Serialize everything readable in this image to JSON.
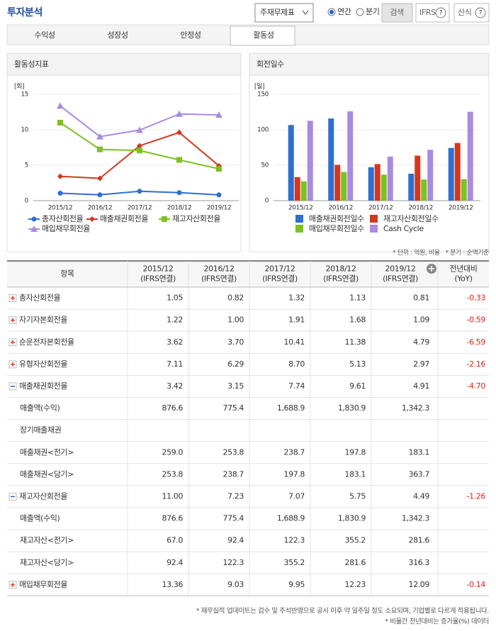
{
  "header": {
    "title": "투자분석",
    "select": "주재무제표",
    "radios": [
      "연간",
      "분기"
    ],
    "radio_checked": 0,
    "buttons": [
      "검색",
      "IFRS",
      "산식"
    ]
  },
  "tabs": [
    "수익성",
    "성장성",
    "안정성",
    "활동성"
  ],
  "active_tab": 3,
  "chart_data": [
    {
      "type": "line",
      "title": "활동성지표",
      "unit": "[회]",
      "categories": [
        "2015/12",
        "2016/12",
        "2017/12",
        "2018/12",
        "2019/12"
      ],
      "ylim": [
        0,
        15
      ],
      "yticks": [
        0,
        5,
        10,
        15
      ],
      "grid": true,
      "series": [
        {
          "name": "총자산회전율",
          "color": "#2f6fd0",
          "marker": "circle",
          "values": [
            1.05,
            0.82,
            1.32,
            1.13,
            0.81
          ]
        },
        {
          "name": "매출채권회전율",
          "color": "#d2381e",
          "marker": "diamond",
          "values": [
            3.42,
            3.15,
            7.74,
            9.61,
            4.91
          ]
        },
        {
          "name": "재고자산회전율",
          "color": "#7dc21e",
          "marker": "square",
          "values": [
            11.0,
            7.23,
            7.07,
            5.75,
            4.49
          ]
        },
        {
          "name": "매입채무회전율",
          "color": "#a98be0",
          "marker": "triangle",
          "values": [
            13.36,
            9.03,
            9.95,
            12.23,
            12.09
          ]
        }
      ]
    },
    {
      "type": "bar",
      "title": "회전일수",
      "unit": "[일]",
      "categories": [
        "2015/12",
        "2016/12",
        "2017/12",
        "2018/12",
        "2019/12"
      ],
      "ylim": [
        0,
        150
      ],
      "yticks": [
        0,
        50,
        100,
        150
      ],
      "grid": true,
      "series": [
        {
          "name": "매출채권회전일수",
          "color": "#2f6fd0",
          "values": [
            106.7,
            115.9,
            47.2,
            38.0,
            74.3
          ]
        },
        {
          "name": "재고자산회전일수",
          "color": "#d2381e",
          "values": [
            33.2,
            50.5,
            51.6,
            63.5,
            81.3
          ]
        },
        {
          "name": "매입채무회전일수",
          "color": "#7dc21e",
          "values": [
            27.3,
            40.4,
            36.7,
            29.8,
            30.2
          ]
        },
        {
          "name": "Cash Cycle",
          "color": "#a98be0",
          "values": [
            112.6,
            126.0,
            62.1,
            71.7,
            125.4
          ]
        }
      ]
    }
  ],
  "notes": [
    "* 단위 : 억원, 비율",
    "* 분기 : 순액기준"
  ],
  "table": {
    "columns": [
      [
        "항목"
      ],
      [
        "2015/12",
        "(IFRS연결)"
      ],
      [
        "2016/12",
        "(IFRS연결)"
      ],
      [
        "2017/12",
        "(IFRS연결)"
      ],
      [
        "2018/12",
        "(IFRS연결)"
      ],
      [
        "2019/12",
        "(IFRS연결)"
      ],
      [
        "전년대비",
        "(YoY)"
      ]
    ],
    "rows": [
      {
        "label": "총자산회전율",
        "toggle": "plus",
        "values": [
          "1.05",
          "0.82",
          "1.32",
          "1.13",
          "0.81"
        ],
        "yoy": "-0.33"
      },
      {
        "label": "자기자본회전율",
        "toggle": "plus",
        "values": [
          "1.22",
          "1.00",
          "1.91",
          "1.68",
          "1.09"
        ],
        "yoy": "-0.59"
      },
      {
        "label": "순운전자본회전율",
        "toggle": "plus",
        "values": [
          "3.62",
          "3.70",
          "10.41",
          "11.38",
          "4.79"
        ],
        "yoy": "-6.59"
      },
      {
        "label": "유형자산회전율",
        "toggle": "plus",
        "values": [
          "7.11",
          "6.29",
          "8.70",
          "5.13",
          "2.97"
        ],
        "yoy": "-2.16"
      },
      {
        "label": "매출채권회전율",
        "toggle": "minus",
        "values": [
          "3.42",
          "3.15",
          "7.74",
          "9.61",
          "4.91"
        ],
        "yoy": "-4.70"
      },
      {
        "label": "매출액(수익)",
        "values": [
          "876.6",
          "775.4",
          "1,688.9",
          "1,830.9",
          "1,342.3"
        ]
      },
      {
        "label": "장기매출채권",
        "values": [
          null,
          null,
          null,
          null,
          null
        ]
      },
      {
        "label": "매출채권<전기>",
        "values": [
          "259.0",
          "253.8",
          "238.7",
          "197.8",
          "183.1"
        ]
      },
      {
        "label": "매출채권<당기>",
        "values": [
          "253.8",
          "238.7",
          "197.8",
          "183.1",
          "363.7"
        ]
      },
      {
        "label": "재고자산회전율",
        "toggle": "minus",
        "values": [
          "11.00",
          "7.23",
          "7.07",
          "5.75",
          "4.49"
        ],
        "yoy": "-1.26"
      },
      {
        "label": "매출액(수익)",
        "values": [
          "876.6",
          "775.4",
          "1,688.9",
          "1,830.9",
          "1,342.3"
        ]
      },
      {
        "label": "재고자산<전기>",
        "values": [
          "67.0",
          "92.4",
          "122.3",
          "355.2",
          "281.6"
        ]
      },
      {
        "label": "재고자산<당기>",
        "values": [
          "92.4",
          "122.3",
          "355.2",
          "281.6",
          "316.3"
        ]
      },
      {
        "label": "매입채무회전율",
        "toggle": "plus",
        "values": [
          "13.36",
          "9.03",
          "9.95",
          "12.23",
          "12.09"
        ],
        "yoy": "-0.14"
      }
    ]
  },
  "footnotes": [
    "* 재무실적 업데이트는 검수 및 주석반영으로 공시 이후 약 일주일 정도 소요되며, 기업별로 다르게 적용됩니다.",
    "* 비율간 전년대비는 증가율(%) 데이터"
  ]
}
